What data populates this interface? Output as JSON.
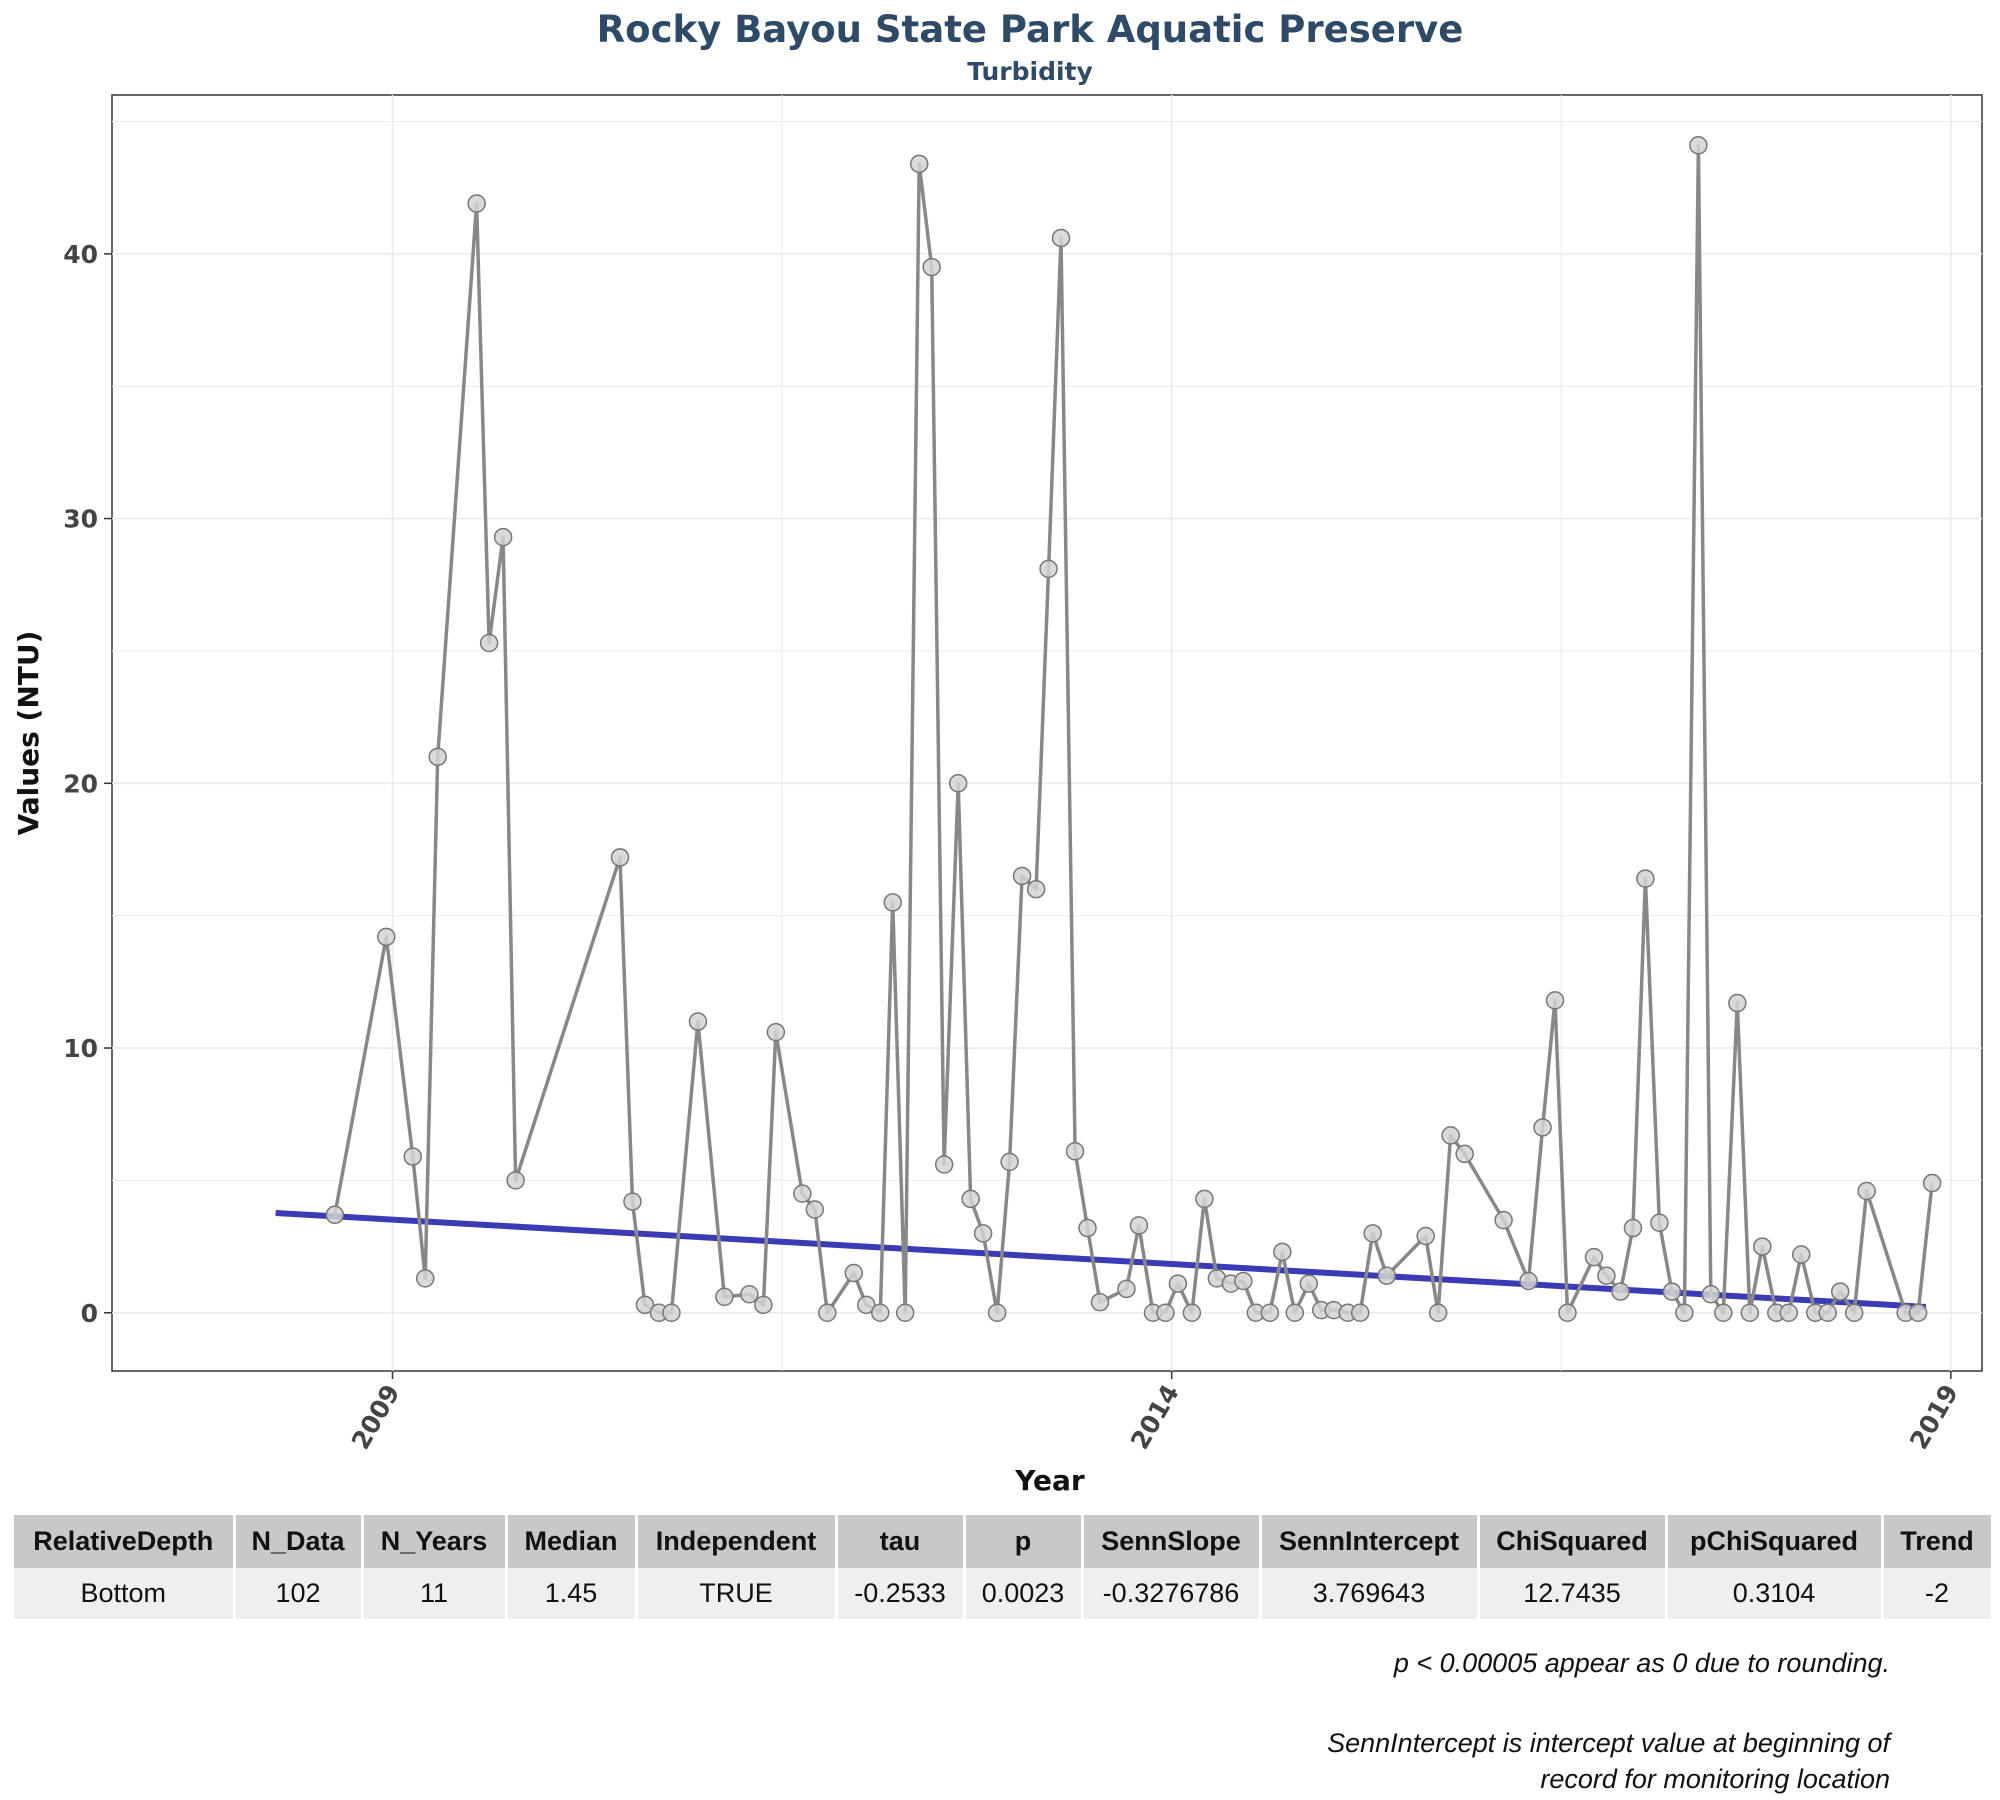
{
  "chart_data": {
    "type": "line",
    "title": "Rocky Bayou State Park Aquatic Preserve",
    "subtitle": "Turbidity",
    "xlabel": "Year",
    "ylabel": "Values (NTU)",
    "xlim": [
      2007.2,
      2019.2
    ],
    "ylim": [
      -2.2,
      46
    ],
    "xticks": [
      2009,
      2014,
      2019
    ],
    "yticks": [
      0,
      10,
      20,
      30,
      40
    ],
    "grid": true,
    "colors": {
      "line": "#888888",
      "point_fill": "#d3d3d3",
      "point_stroke": "#777777",
      "trend": "#3b3bb5"
    },
    "points": [
      [
        2008.63,
        3.7
      ],
      [
        2008.96,
        14.2
      ],
      [
        2009.13,
        5.9
      ],
      [
        2009.21,
        1.3
      ],
      [
        2009.29,
        21.0
      ],
      [
        2009.54,
        41.9
      ],
      [
        2009.62,
        25.3
      ],
      [
        2009.71,
        29.3
      ],
      [
        2009.79,
        5.0
      ],
      [
        2010.46,
        17.2
      ],
      [
        2010.54,
        4.2
      ],
      [
        2010.62,
        0.3
      ],
      [
        2010.71,
        0.0
      ],
      [
        2010.79,
        0.0
      ],
      [
        2010.96,
        11.0
      ],
      [
        2011.13,
        0.6
      ],
      [
        2011.29,
        0.7
      ],
      [
        2011.38,
        0.3
      ],
      [
        2011.46,
        10.6
      ],
      [
        2011.63,
        4.5
      ],
      [
        2011.71,
        3.9
      ],
      [
        2011.79,
        0.0
      ],
      [
        2011.96,
        1.5
      ],
      [
        2012.04,
        0.3
      ],
      [
        2012.13,
        0.0
      ],
      [
        2012.21,
        15.5
      ],
      [
        2012.29,
        0.0
      ],
      [
        2012.38,
        43.4
      ],
      [
        2012.46,
        39.5
      ],
      [
        2012.54,
        5.6
      ],
      [
        2012.63,
        20.0
      ],
      [
        2012.71,
        4.3
      ],
      [
        2012.79,
        3.0
      ],
      [
        2012.88,
        0.0
      ],
      [
        2012.96,
        5.7
      ],
      [
        2013.04,
        16.5
      ],
      [
        2013.13,
        16.0
      ],
      [
        2013.21,
        28.1
      ],
      [
        2013.29,
        40.6
      ],
      [
        2013.38,
        6.1
      ],
      [
        2013.46,
        3.2
      ],
      [
        2013.54,
        0.4
      ],
      [
        2013.71,
        0.9
      ],
      [
        2013.79,
        3.3
      ],
      [
        2013.88,
        0.0
      ],
      [
        2013.96,
        0.0
      ],
      [
        2014.04,
        1.1
      ],
      [
        2014.13,
        0.0
      ],
      [
        2014.21,
        4.3
      ],
      [
        2014.29,
        1.3
      ],
      [
        2014.38,
        1.1
      ],
      [
        2014.46,
        1.2
      ],
      [
        2014.54,
        0.0
      ],
      [
        2014.63,
        0.0
      ],
      [
        2014.71,
        2.3
      ],
      [
        2014.79,
        0.0
      ],
      [
        2014.88,
        1.1
      ],
      [
        2014.96,
        0.1
      ],
      [
        2015.04,
        0.1
      ],
      [
        2015.13,
        0.0
      ],
      [
        2015.21,
        0.0
      ],
      [
        2015.29,
        3.0
      ],
      [
        2015.38,
        1.4
      ],
      [
        2015.63,
        2.9
      ],
      [
        2015.71,
        0.0
      ],
      [
        2015.79,
        6.7
      ],
      [
        2015.88,
        6.0
      ],
      [
        2016.13,
        3.5
      ],
      [
        2016.29,
        1.2
      ],
      [
        2016.38,
        7.0
      ],
      [
        2016.46,
        11.8
      ],
      [
        2016.54,
        0.0
      ],
      [
        2016.71,
        2.1
      ],
      [
        2016.79,
        1.4
      ],
      [
        2016.88,
        0.8
      ],
      [
        2016.96,
        3.2
      ],
      [
        2017.04,
        16.4
      ],
      [
        2017.13,
        3.4
      ],
      [
        2017.21,
        0.8
      ],
      [
        2017.29,
        0.0
      ],
      [
        2017.38,
        44.1
      ],
      [
        2017.46,
        0.7
      ],
      [
        2017.54,
        0.0
      ],
      [
        2017.63,
        11.7
      ],
      [
        2017.71,
        0.0
      ],
      [
        2017.79,
        2.5
      ],
      [
        2017.88,
        0.0
      ],
      [
        2017.96,
        0.0
      ],
      [
        2018.04,
        2.2
      ],
      [
        2018.13,
        0.0
      ],
      [
        2018.21,
        0.0
      ],
      [
        2018.29,
        0.8
      ],
      [
        2018.38,
        0.0
      ],
      [
        2018.46,
        4.6
      ],
      [
        2018.71,
        0.0
      ],
      [
        2018.79,
        0.0
      ],
      [
        2018.88,
        4.9
      ]
    ],
    "trend_line": {
      "x": [
        2008.25,
        2018.84
      ],
      "y": [
        3.77,
        0.22
      ]
    }
  },
  "table": {
    "headers": [
      "RelativeDepth",
      "N_Data",
      "N_Years",
      "Median",
      "Independent",
      "tau",
      "p",
      "SennSlope",
      "SennIntercept",
      "ChiSquared",
      "pChiSquared",
      "Trend"
    ],
    "rows": [
      [
        "Bottom",
        "102",
        "11",
        "1.45",
        "TRUE",
        "-0.2533",
        "0.0023",
        "-0.3276786",
        "3.769643",
        "12.7435",
        "0.3104",
        "-2"
      ]
    ]
  },
  "notes": {
    "rounding": "p < 0.00005 appear as 0 due to rounding.",
    "intercept_line1": "SennIntercept is intercept value at beginning of",
    "intercept_line2": "record for monitoring location"
  }
}
